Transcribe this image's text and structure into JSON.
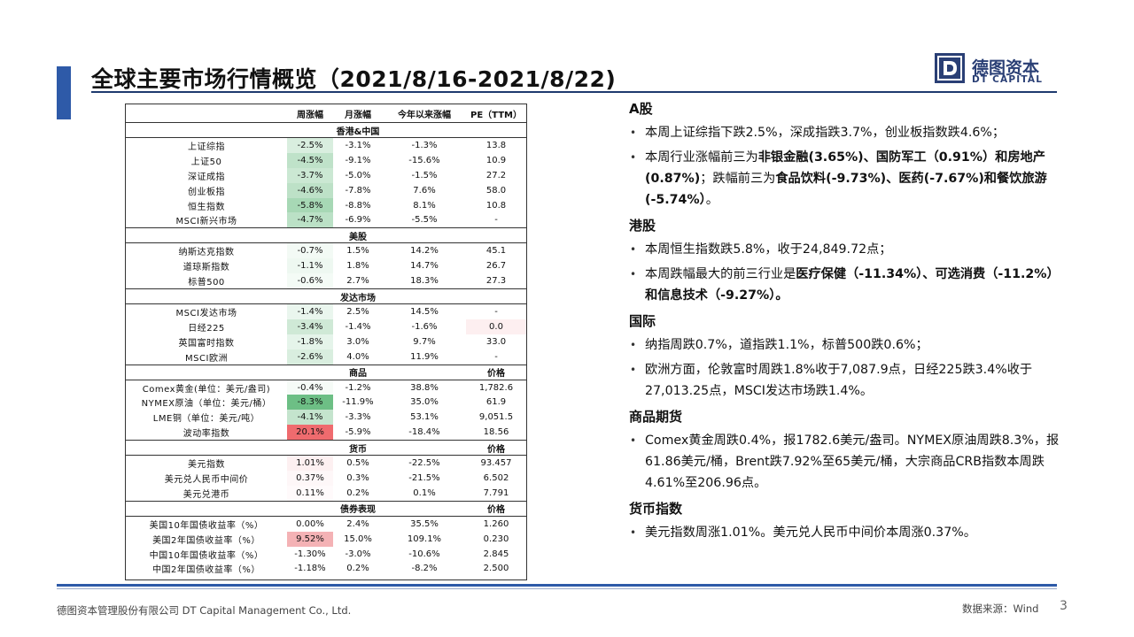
{
  "header": {
    "title": "全球主要市场行情概览（2021/8/16-2021/8/22)"
  },
  "logo": {
    "name": "德图资本",
    "name_en": "DT CAPITAL",
    "mark": "D"
  },
  "table": {
    "columns": [
      "",
      "周涨幅",
      "月涨幅",
      "今年以来涨幅",
      "PE（TTM）"
    ],
    "sections": [
      {
        "title": "香港&中国",
        "col5": "",
        "rows": [
          {
            "name": "上证综指",
            "w": "-2.5%",
            "m": "-3.1%",
            "y": "-1.3%",
            "v": "13.8",
            "wbg": "#d9eedf"
          },
          {
            "name": "上证50",
            "w": "-4.5%",
            "m": "-9.1%",
            "y": "-15.6%",
            "v": "10.9",
            "wbg": "#bfe2c9"
          },
          {
            "name": "深证成指",
            "w": "-3.7%",
            "m": "-5.0%",
            "y": "-1.5%",
            "v": "27.2",
            "wbg": "#cbe8d3"
          },
          {
            "name": "创业板指",
            "w": "-4.6%",
            "m": "-7.8%",
            "y": "7.6%",
            "v": "58.0",
            "wbg": "#bde1c7"
          },
          {
            "name": "恒生指数",
            "w": "-5.8%",
            "m": "-8.8%",
            "y": "8.1%",
            "v": "10.8",
            "wbg": "#a7d8b5"
          },
          {
            "name": "MSCI新兴市场",
            "w": "-4.7%",
            "m": "-6.9%",
            "y": "-5.5%",
            "v": "-",
            "wbg": "#bbe1c6"
          }
        ]
      },
      {
        "title": "美股",
        "col5": "",
        "rows": [
          {
            "name": "纳斯达克指数",
            "w": "-0.7%",
            "m": "1.5%",
            "y": "14.2%",
            "v": "45.1",
            "wbg": "#f3faf5"
          },
          {
            "name": "道琼斯指数",
            "w": "-1.1%",
            "m": "1.8%",
            "y": "14.7%",
            "v": "26.7",
            "wbg": "#eef8f1"
          },
          {
            "name": "标普500",
            "w": "-0.6%",
            "m": "2.7%",
            "y": "18.3%",
            "v": "27.3",
            "wbg": "#f4fbf6"
          }
        ]
      },
      {
        "title": "发达市场",
        "col5": "",
        "rows": [
          {
            "name": "MSCI发达市场",
            "w": "-1.4%",
            "m": "2.5%",
            "y": "14.5%",
            "v": "-",
            "wbg": "#eaf6ee"
          },
          {
            "name": "日经225",
            "w": "-3.4%",
            "m": "-1.4%",
            "y": "-1.6%",
            "v": "0.0",
            "wbg": "#cfe9d6",
            "vbg": "#fdeff0"
          },
          {
            "name": "英国富时指数",
            "w": "-1.8%",
            "m": "3.0%",
            "y": "9.7%",
            "v": "33.0",
            "wbg": "#e5f4ea"
          },
          {
            "name": "MSCI欧洲",
            "w": "-2.6%",
            "m": "4.0%",
            "y": "11.9%",
            "v": "-",
            "wbg": "#d9eedf"
          }
        ]
      },
      {
        "title": "商品",
        "col5": "价格",
        "rows": [
          {
            "name": "Comex黄金(单位：美元/盎司)",
            "w": "-0.4%",
            "m": "-1.2%",
            "y": "38.8%",
            "v": "1,782.6",
            "wbg": "#f6fbf7"
          },
          {
            "name": "NYMEX原油（单位：美元/桶）",
            "w": "-8.3%",
            "m": "-11.9%",
            "y": "35.0%",
            "v": "61.9",
            "wbg": "#6dbf85"
          },
          {
            "name": "LME铜（单位：美元/吨）",
            "w": "-4.1%",
            "m": "-3.3%",
            "y": "53.1%",
            "v": "9,051.5",
            "wbg": "#c4e4cd"
          },
          {
            "name": "波动率指数",
            "w": "20.1%",
            "m": "-5.9%",
            "y": "-18.4%",
            "v": "18.56",
            "wbg": "#ef6b6e"
          }
        ]
      },
      {
        "title": "货币",
        "col5": "价格",
        "rows": [
          {
            "name": "美元指数",
            "w": "1.01%",
            "m": "0.5%",
            "y": "-22.5%",
            "v": "93.457",
            "wbg": "#fdf0f1"
          },
          {
            "name": "美元兑人民币中间价",
            "w": "0.37%",
            "m": "0.3%",
            "y": "-21.5%",
            "v": "6.502",
            "wbg": "#fef7f8"
          },
          {
            "name": "美元兑港币",
            "w": "0.11%",
            "m": "0.2%",
            "y": "0.1%",
            "v": "7.791",
            "wbg": "#fffafb"
          }
        ]
      },
      {
        "title": "债券表现",
        "col5": "价格",
        "rows": [
          {
            "name": "美国10年国债收益率（%）",
            "w": "0.00%",
            "m": "2.4%",
            "y": "35.5%",
            "v": "1.260",
            "wbg": "#ffffff"
          },
          {
            "name": "美国2年国债收益率（%）",
            "w": "9.52%",
            "m": "15.0%",
            "y": "109.1%",
            "v": "0.230",
            "wbg": "#f4b2b5"
          },
          {
            "name": "中国10年国债收益率（%）",
            "w": "-1.30%",
            "m": "-3.0%",
            "y": "-10.6%",
            "v": "2.845",
            "wbg": "#ffffff"
          },
          {
            "name": "中国2年国债收益率（%）",
            "w": "-1.18%",
            "m": "0.2%",
            "y": "-8.2%",
            "v": "2.500",
            "wbg": "#ffffff"
          }
        ]
      }
    ]
  },
  "commentary": {
    "a_share": {
      "heading": "A股",
      "b1": "本周上证综指下跌2.5%，深成指跌3.7%，创业板指数跌4.6%；",
      "b2_pre": "本周行业涨幅前三为",
      "b2_bold1": "非银金融(3.65%)、国防军工（0.91%）和房地产(0.87%)",
      "b2_mid": "；跌幅前三为",
      "b2_bold2": "食品饮料(-9.73%)、医药(-7.67%)和餐饮旅游(-5.74%）",
      "b2_post": "。"
    },
    "hk": {
      "heading": "港股",
      "b1": "本周恒生指数跌5.8%，收于24,849.72点；",
      "b2_pre": "本周跌幅最大的前三行业是",
      "b2_bold": "医疗保健（-11.34%）、可选消费（-11.2%）和信息技术（-9.27%）。"
    },
    "intl": {
      "heading": "国际",
      "b1": "纳指周跌0.7%，道指跌1.1%，标普500跌0.6%；",
      "b2": "欧洲方面，伦敦富时周跌1.8%收于7,087.9点，日经225跌3.4%收于27,013.25点，MSCI发达市场跌1.4%。"
    },
    "commodity": {
      "heading": "商品期货",
      "b1": "Comex黄金周跌0.4%，报1782.6美元/盎司。NYMEX原油周跌8.3%，报61.86美元/桶，Brent跌7.92%至65美元/桶，大宗商品CRB指数本周跌4.61%至206.96点。"
    },
    "fx": {
      "heading": "货币指数",
      "b1": "美元指数周涨1.01%。美元兑人民币中间价本周涨0.37%。"
    }
  },
  "footer": {
    "company": "德图资本管理股份有限公司 DT Capital Management Co., Ltd.",
    "source": "数据来源：Wind",
    "page": "3"
  }
}
